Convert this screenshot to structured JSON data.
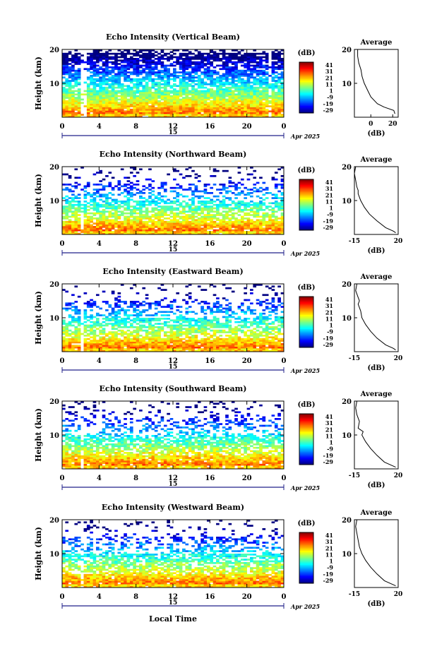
{
  "figure": {
    "time_axis_label": "Local Time",
    "date_label": "Apr 2025",
    "day_label": "15",
    "colorbar_ticks": [
      "41",
      "31",
      "21",
      "11",
      "1",
      "-9",
      "-19",
      "-29"
    ],
    "colorbar_unit": "(dB)",
    "average_title": "Average",
    "average_xlabel": "(dB)"
  },
  "chart_data": [
    {
      "type": "heatmap",
      "title": "Echo Intensity (Vertical Beam)",
      "ylabel": "Height (km)",
      "xticks": [
        "0",
        "4",
        "8",
        "12",
        "16",
        "20",
        "0"
      ],
      "yticks": [
        "20",
        "10"
      ],
      "xlim": [
        0,
        24
      ],
      "ylim": [
        0,
        20
      ],
      "colorbar": {
        "label": "(dB)",
        "range": [
          -29,
          41
        ]
      },
      "average": {
        "xticks": [
          "0",
          "20"
        ],
        "xlim": [
          -15,
          25
        ],
        "height_km": [
          1,
          2,
          3,
          4,
          6,
          8,
          10,
          11,
          12,
          14,
          16,
          18,
          20
        ],
        "echo_db": [
          22,
          21,
          12,
          6,
          0,
          -3,
          -6,
          -7,
          -8,
          -9,
          -11,
          -12,
          -12
        ]
      }
    },
    {
      "type": "heatmap",
      "title": "Echo Intensity (Northward Beam)",
      "ylabel": "Height (km)",
      "xticks": [
        "0",
        "4",
        "8",
        "12",
        "16",
        "20",
        "0"
      ],
      "yticks": [
        "20",
        "10"
      ],
      "xlim": [
        0,
        24
      ],
      "ylim": [
        0,
        20
      ],
      "colorbar": {
        "label": "(dB)",
        "range": [
          -29,
          41
        ]
      },
      "average": {
        "xticks": [
          "-15",
          "20"
        ],
        "xlim": [
          -15,
          20
        ],
        "height_km": [
          0.5,
          1,
          2,
          4,
          6,
          8,
          10,
          12,
          13,
          14,
          16,
          18,
          20
        ],
        "echo_db": [
          18,
          16,
          10,
          3,
          -3,
          -7,
          -10,
          -12,
          -12,
          -13,
          -14,
          -15,
          -14
        ]
      }
    },
    {
      "type": "heatmap",
      "title": "Echo Intensity (Eastward Beam)",
      "ylabel": "Height (km)",
      "xticks": [
        "0",
        "4",
        "8",
        "12",
        "16",
        "20",
        "0"
      ],
      "yticks": [
        "20",
        "10"
      ],
      "xlim": [
        0,
        24
      ],
      "ylim": [
        0,
        20
      ],
      "colorbar": {
        "label": "(dB)",
        "range": [
          -29,
          41
        ]
      },
      "average": {
        "xticks": [
          "-15",
          "20"
        ],
        "xlim": [
          -15,
          20
        ],
        "height_km": [
          0.5,
          1,
          2,
          4,
          6,
          8,
          10,
          12,
          14,
          15,
          16,
          18,
          20
        ],
        "echo_db": [
          18,
          16,
          10,
          3,
          -2,
          -6,
          -9,
          -10,
          -12,
          -11,
          -12,
          -14,
          -13
        ]
      }
    },
    {
      "type": "heatmap",
      "title": "Echo Intensity (Southward Beam)",
      "ylabel": "Height (km)",
      "xticks": [
        "0",
        "4",
        "8",
        "12",
        "16",
        "20",
        "0"
      ],
      "yticks": [
        "20",
        "10"
      ],
      "xlim": [
        0,
        24
      ],
      "ylim": [
        0,
        20
      ],
      "colorbar": {
        "label": "(dB)",
        "range": [
          -29,
          41
        ]
      },
      "average": {
        "xticks": [
          "-15",
          "20"
        ],
        "xlim": [
          -15,
          20
        ],
        "height_km": [
          0.5,
          1,
          2,
          4,
          6,
          8,
          10,
          11,
          12,
          14,
          16,
          18,
          20
        ],
        "echo_db": [
          18,
          15,
          9,
          3,
          -2,
          -6,
          -9,
          -8,
          -12,
          -11,
          -13,
          -14,
          -13
        ]
      }
    },
    {
      "type": "heatmap",
      "title": "Echo Intensity (Westward Beam)",
      "ylabel": "Height (km)",
      "xticks": [
        "0",
        "4",
        "8",
        "12",
        "16",
        "20",
        "0"
      ],
      "yticks": [
        "20",
        "10"
      ],
      "xlim": [
        0,
        24
      ],
      "ylim": [
        0,
        20
      ],
      "colorbar": {
        "label": "(dB)",
        "range": [
          -29,
          41
        ]
      },
      "average": {
        "xticks": [
          "-15",
          "20"
        ],
        "xlim": [
          -15,
          20
        ],
        "height_km": [
          0.5,
          1,
          2,
          4,
          6,
          8,
          10,
          12,
          14,
          16,
          18,
          20
        ],
        "echo_db": [
          18,
          15,
          9,
          3,
          -2,
          -6,
          -9,
          -11,
          -12,
          -13,
          -14,
          -13
        ]
      }
    }
  ]
}
